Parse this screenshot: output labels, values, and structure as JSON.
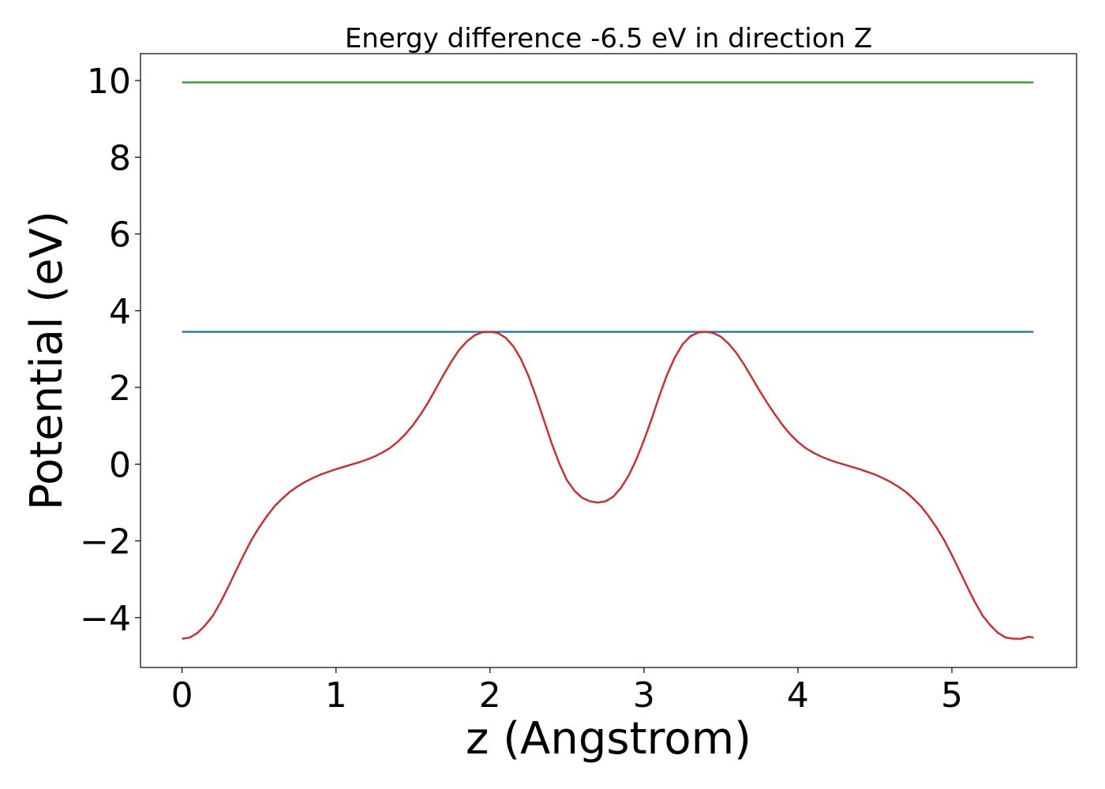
{
  "chart_data": {
    "type": "line",
    "title": "Energy difference -6.5 eV in direction Z",
    "xlabel": "z (Angstrom)",
    "ylabel": "Potential (eV)",
    "xlim": [
      -0.27,
      5.81
    ],
    "ylim": [
      -5.3,
      10.7
    ],
    "xticks": [
      0,
      1,
      2,
      3,
      4,
      5
    ],
    "xtick_labels": [
      "0",
      "1",
      "2",
      "3",
      "4",
      "5"
    ],
    "yticks": [
      -4,
      -2,
      0,
      2,
      4,
      6,
      8,
      10
    ],
    "ytick_labels": [
      "−4",
      "−2",
      "0",
      "2",
      "4",
      "6",
      "8",
      "10"
    ],
    "grid": false,
    "series": [
      {
        "color": "#2ca02c",
        "x": [
          0,
          5.53
        ],
        "y": [
          9.95,
          9.95
        ]
      },
      {
        "color": "#1f77b4",
        "x": [
          0,
          5.53
        ],
        "y": [
          3.45,
          3.45
        ]
      },
      {
        "color": "#d62728",
        "x": [
          0,
          0.05,
          0.1,
          0.15,
          0.2,
          0.25,
          0.3,
          0.35,
          0.4,
          0.45,
          0.5,
          0.55,
          0.6,
          0.65,
          0.7,
          0.75,
          0.8,
          0.85,
          0.9,
          0.95,
          1.0,
          1.05,
          1.1,
          1.15,
          1.2,
          1.25,
          1.3,
          1.35,
          1.4,
          1.45,
          1.5,
          1.55,
          1.6,
          1.65,
          1.7,
          1.75,
          1.8,
          1.85,
          1.9,
          1.95,
          2.0,
          2.05,
          2.1,
          2.15,
          2.2,
          2.25,
          2.3,
          2.35,
          2.4,
          2.45,
          2.5,
          2.55,
          2.6,
          2.65,
          2.7,
          2.75,
          2.8,
          2.85,
          2.9,
          2.95,
          3.0,
          3.05,
          3.1,
          3.15,
          3.2,
          3.25,
          3.3,
          3.35,
          3.4,
          3.45,
          3.5,
          3.55,
          3.6,
          3.65,
          3.7,
          3.75,
          3.8,
          3.85,
          3.9,
          3.95,
          4.0,
          4.05,
          4.1,
          4.15,
          4.2,
          4.25,
          4.3,
          4.35,
          4.4,
          4.45,
          4.5,
          4.55,
          4.6,
          4.65,
          4.7,
          4.75,
          4.8,
          4.85,
          4.9,
          4.95,
          5.0,
          5.05,
          5.1,
          5.15,
          5.2,
          5.25,
          5.3,
          5.35,
          5.4,
          5.45,
          5.5,
          5.53
        ],
        "y": [
          -4.55,
          -4.52,
          -4.4,
          -4.2,
          -3.95,
          -3.6,
          -3.2,
          -2.78,
          -2.37,
          -1.98,
          -1.65,
          -1.36,
          -1.1,
          -0.9,
          -0.72,
          -0.58,
          -0.46,
          -0.36,
          -0.27,
          -0.2,
          -0.13,
          -0.07,
          -0.01,
          0.05,
          0.12,
          0.2,
          0.3,
          0.42,
          0.58,
          0.78,
          1.02,
          1.3,
          1.62,
          1.98,
          2.34,
          2.68,
          2.98,
          3.2,
          3.36,
          3.44,
          3.45,
          3.42,
          3.3,
          3.08,
          2.75,
          2.3,
          1.75,
          1.15,
          0.55,
          0.02,
          -0.42,
          -0.7,
          -0.88,
          -0.97,
          -1.0,
          -0.97,
          -0.85,
          -0.62,
          -0.3,
          0.12,
          0.62,
          1.18,
          1.78,
          2.33,
          2.78,
          3.12,
          3.33,
          3.43,
          3.45,
          3.42,
          3.32,
          3.14,
          2.9,
          2.6,
          2.26,
          1.92,
          1.6,
          1.3,
          1.02,
          0.78,
          0.58,
          0.42,
          0.3,
          0.2,
          0.12,
          0.05,
          -0.01,
          -0.07,
          -0.13,
          -0.2,
          -0.27,
          -0.36,
          -0.46,
          -0.58,
          -0.72,
          -0.9,
          -1.1,
          -1.36,
          -1.65,
          -1.98,
          -2.37,
          -2.78,
          -3.2,
          -3.6,
          -3.95,
          -4.2,
          -4.4,
          -4.52,
          -4.55,
          -4.55,
          -4.5,
          -4.52
        ]
      }
    ]
  }
}
